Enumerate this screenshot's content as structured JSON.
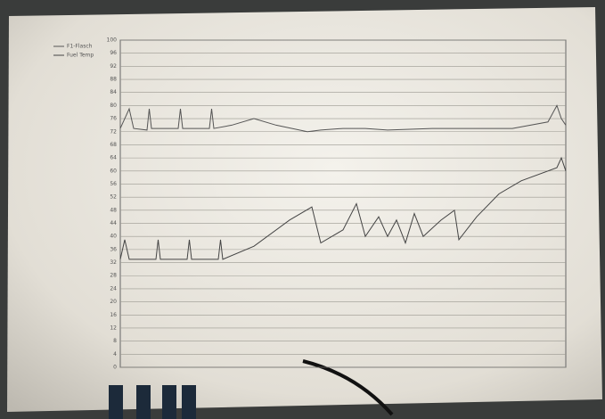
{
  "chart_data": {
    "type": "line",
    "xlim": [
      0,
      100
    ],
    "ylim": [
      0,
      100
    ],
    "yticks": [
      0,
      4,
      8,
      12,
      16,
      20,
      24,
      28,
      32,
      36,
      40,
      44,
      48,
      52,
      56,
      60,
      64,
      68,
      72,
      76,
      80,
      84,
      88,
      92,
      96,
      100
    ],
    "grid": true,
    "legend": "top-left",
    "series": [
      {
        "name": "F1-Flasch",
        "color": "#555555",
        "x": [
          0,
          2,
          3,
          6,
          6.5,
          7,
          13,
          13.5,
          14,
          20,
          20.5,
          21,
          25,
          30,
          35,
          42,
          45,
          50,
          55,
          60,
          70,
          80,
          88,
          96,
          98,
          99,
          100
        ],
        "values": [
          73,
          79,
          73,
          72.5,
          79,
          73,
          73,
          79,
          73,
          73,
          79,
          73,
          74,
          76,
          74,
          72,
          72.5,
          73,
          73,
          72.5,
          73,
          73,
          73,
          75,
          80,
          76,
          74
        ]
      },
      {
        "name": "Fuel Temp",
        "color": "#444444",
        "x": [
          0,
          1,
          2,
          8,
          8.5,
          9,
          15,
          15.5,
          16,
          22,
          22.5,
          23,
          30,
          38,
          43,
          45,
          50,
          53,
          55,
          58,
          60,
          62,
          64,
          66,
          68,
          72,
          75,
          76,
          80,
          85,
          90,
          98,
          99,
          100
        ],
        "values": [
          33,
          39,
          33,
          33,
          39,
          33,
          33,
          39,
          33,
          33,
          39,
          33,
          37,
          45,
          49,
          38,
          42,
          50,
          40,
          46,
          40,
          45,
          38,
          47,
          40,
          45,
          48,
          39,
          46,
          53,
          57,
          61,
          64,
          60
        ]
      }
    ]
  }
}
